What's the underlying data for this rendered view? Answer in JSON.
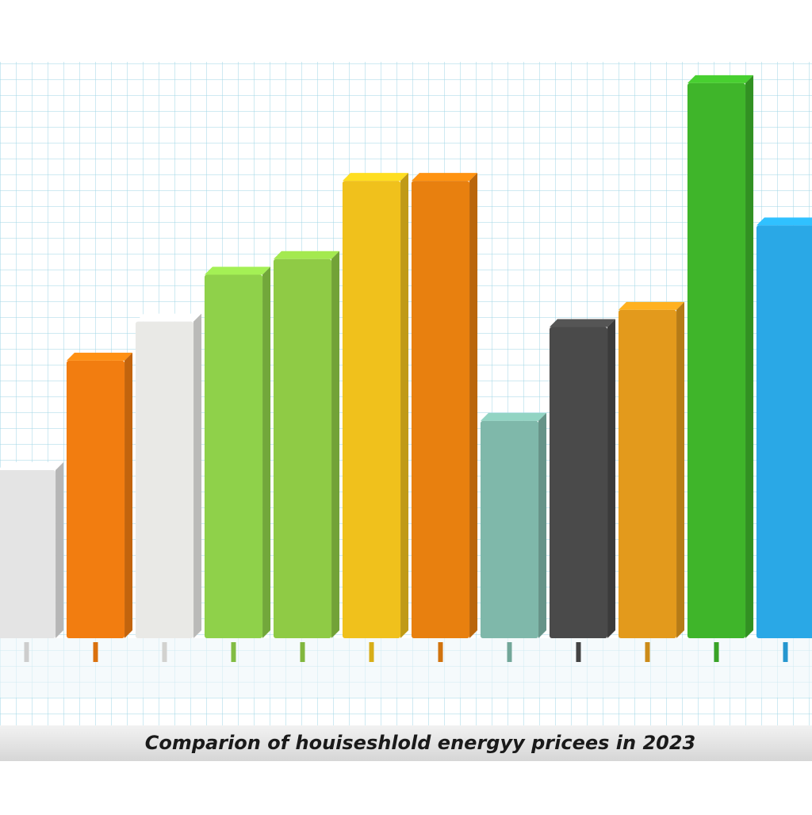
{
  "chart_data": {
    "type": "bar3d",
    "title": "Comparion of houiseshlold energyy pricees in 2023",
    "categories": [
      null,
      null,
      null,
      null,
      null,
      null,
      null,
      null,
      null,
      null,
      null,
      null
    ],
    "values": [
      215,
      355,
      405,
      465,
      485,
      585,
      585,
      278,
      398,
      420,
      710,
      528
    ],
    "colors": [
      "#e4e4e4",
      "#f27d10",
      "#e9e9e6",
      "#8fd14a",
      "#8fcb45",
      "#f0c11c",
      "#e8800f",
      "#7fb8aa",
      "#4a4a4a",
      "#e39a1c",
      "#3fb52a",
      "#2aa8e6"
    ],
    "ylim": [
      0,
      720
    ]
  }
}
